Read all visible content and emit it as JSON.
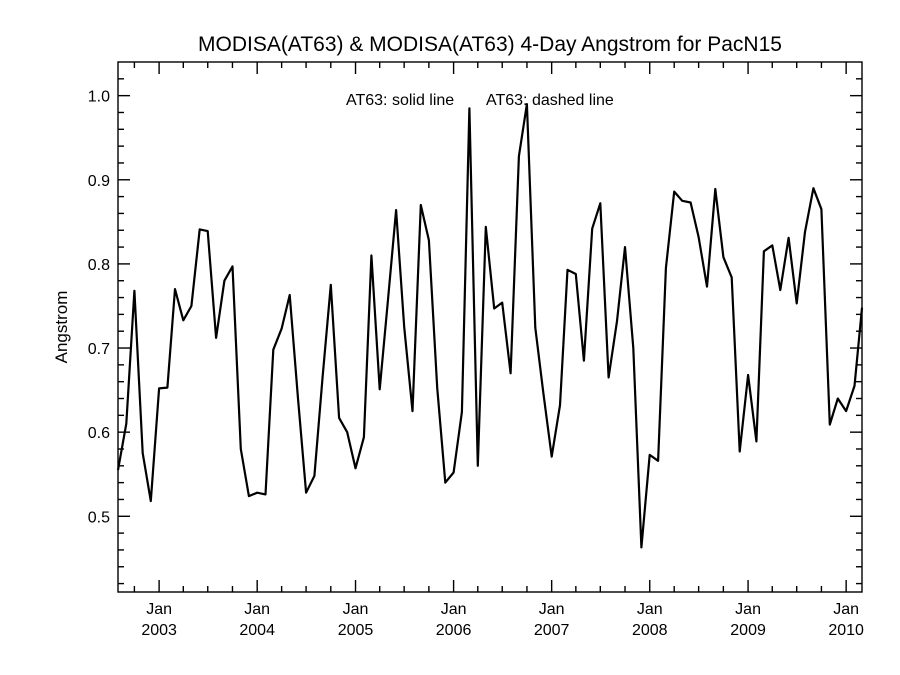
{
  "chart_data": {
    "type": "line",
    "title": "MODISA(AT63) & MODISA(AT63) 4-Day Angstrom for PacN15",
    "ylabel": "Angstrom",
    "xlabel": "",
    "annotations": [
      "AT63: solid line",
      "AT63: dashed line"
    ],
    "xlim": [
      "2002-08-01",
      "2010-03-01"
    ],
    "ylim": [
      0.41,
      1.04
    ],
    "y_ticks": [
      0.5,
      0.6,
      0.7,
      0.8,
      0.9,
      1.0
    ],
    "y_tick_labels": [
      "0.5",
      "0.6",
      "0.7",
      "0.8",
      "0.9",
      "1.0"
    ],
    "x_ticks": [
      {
        "date": "2003-01-01",
        "month": "Jan",
        "year": "2003"
      },
      {
        "date": "2004-01-01",
        "month": "Jan",
        "year": "2004"
      },
      {
        "date": "2005-01-01",
        "month": "Jan",
        "year": "2005"
      },
      {
        "date": "2006-01-01",
        "month": "Jan",
        "year": "2006"
      },
      {
        "date": "2007-01-01",
        "month": "Jan",
        "year": "2007"
      },
      {
        "date": "2008-01-01",
        "month": "Jan",
        "year": "2008"
      },
      {
        "date": "2009-01-01",
        "month": "Jan",
        "year": "2009"
      },
      {
        "date": "2010-01-01",
        "month": "Jan",
        "year": "2010"
      }
    ],
    "grid": false,
    "series": [
      {
        "style": "solid",
        "x": [
          "2002-08-01",
          "2002-09-01",
          "2002-10-01",
          "2002-11-01",
          "2002-12-01",
          "2003-01-01",
          "2003-02-01",
          "2003-03-01",
          "2003-04-01",
          "2003-05-01",
          "2003-06-01",
          "2003-07-01",
          "2003-08-01",
          "2003-09-01",
          "2003-10-01",
          "2003-11-01",
          "2003-12-01",
          "2004-01-01",
          "2004-02-01",
          "2004-03-01",
          "2004-04-01",
          "2004-05-01",
          "2004-06-01",
          "2004-07-01",
          "2004-08-01",
          "2004-09-01",
          "2004-10-01",
          "2004-11-01",
          "2004-12-01",
          "2005-01-01",
          "2005-02-01",
          "2005-03-01",
          "2005-04-01",
          "2005-05-01",
          "2005-06-01",
          "2005-07-01",
          "2005-08-01",
          "2005-09-01",
          "2005-10-01",
          "2005-11-01",
          "2005-12-01",
          "2006-01-01",
          "2006-02-01",
          "2006-03-01",
          "2006-04-01",
          "2006-05-01",
          "2006-06-01",
          "2006-07-01",
          "2006-08-01",
          "2006-09-01",
          "2006-10-01",
          "2006-11-01",
          "2006-12-01",
          "2007-01-01",
          "2007-02-01",
          "2007-03-01",
          "2007-04-01",
          "2007-05-01",
          "2007-06-01",
          "2007-07-01",
          "2007-08-01",
          "2007-09-01",
          "2007-10-01",
          "2007-11-01",
          "2007-12-01",
          "2008-01-01",
          "2008-02-01",
          "2008-03-01",
          "2008-04-01",
          "2008-05-01",
          "2008-06-01",
          "2008-07-01",
          "2008-08-01",
          "2008-09-01",
          "2008-10-01",
          "2008-11-01",
          "2008-12-01",
          "2009-01-01",
          "2009-02-01",
          "2009-03-01",
          "2009-04-01",
          "2009-05-01",
          "2009-06-01",
          "2009-07-01",
          "2009-08-01",
          "2009-09-01",
          "2009-10-01",
          "2009-11-01",
          "2009-12-01",
          "2010-01-01",
          "2010-02-01",
          "2010-03-01"
        ],
        "y": [
          0.555,
          0.61,
          0.768,
          0.575,
          0.518,
          0.652,
          0.653,
          0.77,
          0.733,
          0.75,
          0.841,
          0.839,
          0.712,
          0.78,
          0.797,
          0.58,
          0.524,
          0.528,
          0.526,
          0.698,
          0.723,
          0.763,
          0.64,
          0.528,
          0.548,
          0.667,
          0.775,
          0.617,
          0.6,
          0.557,
          0.594,
          0.81,
          0.651,
          0.755,
          0.864,
          0.725,
          0.625,
          0.87,
          0.828,
          0.653,
          0.54,
          0.552,
          0.624,
          0.985,
          0.56,
          0.844,
          0.747,
          0.754,
          0.67,
          0.928,
          0.99,
          0.724,
          0.647,
          0.571,
          0.632,
          0.793,
          0.788,
          0.685,
          0.842,
          0.872,
          0.665,
          0.732,
          0.82,
          0.7,
          0.463,
          0.573,
          0.566,
          0.795,
          0.886,
          0.875,
          0.873,
          0.832,
          0.773,
          0.889,
          0.808,
          0.784,
          0.577,
          0.668,
          0.589,
          0.815,
          0.822,
          0.769,
          0.831,
          0.753,
          0.838,
          0.89,
          0.865,
          0.609,
          0.64,
          0.625,
          0.655,
          0.748
        ]
      }
    ]
  }
}
